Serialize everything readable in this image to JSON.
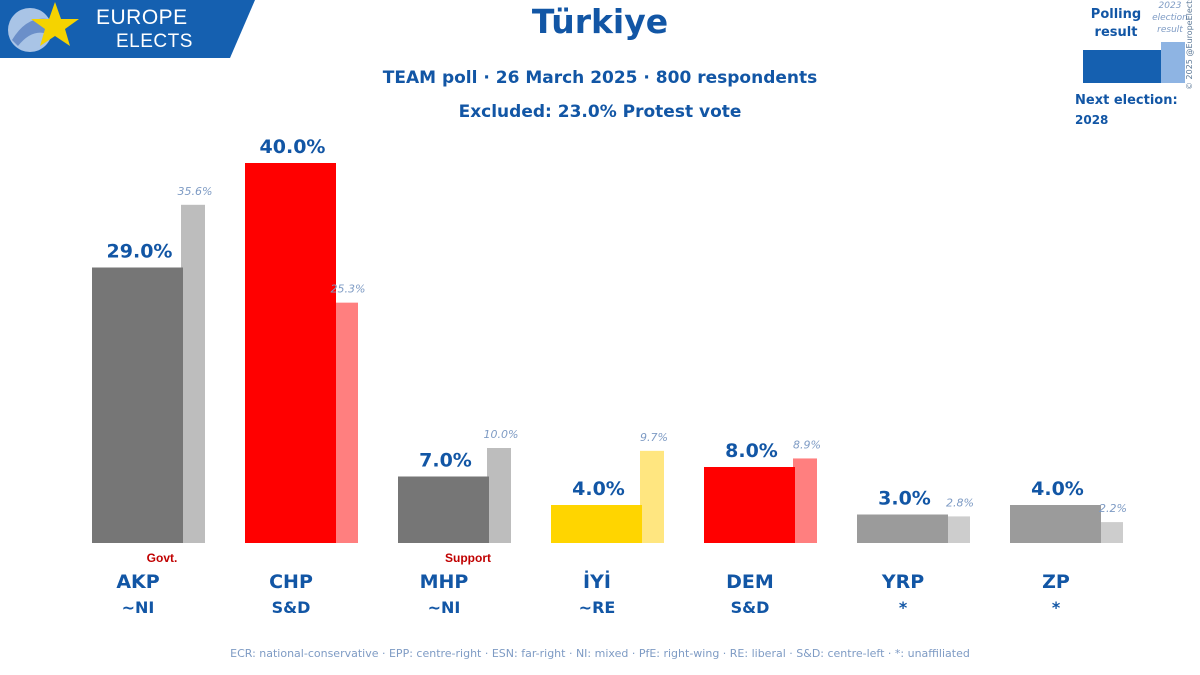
{
  "branding": {
    "logo_line1": "EUROPE",
    "logo_line2": "ELECTS",
    "brand_color": "#1560b0",
    "star_color": "#f5d300"
  },
  "header": {
    "title": "Türkiye",
    "subtitle": "TEAM poll · 26 March 2025 · 800 respondents",
    "excluded_note": "Excluded: 23.0% Protest vote"
  },
  "legend": {
    "polling_label": "Polling result",
    "previous_label": "2023 election result",
    "copyright": "© 2025 @EuropeElects",
    "next_election_label": "Next election:",
    "next_election_year": "2028"
  },
  "footer": {
    "note": "ECR: national-conservative · EPP: centre-right · ESN: far-right · NI: mixed · PfE: right-wing · RE: liberal · S&D: centre-left · *: unaffiliated"
  },
  "chart_data": {
    "type": "bar",
    "title": "Türkiye",
    "ylim": [
      0,
      42
    ],
    "categories": [
      "AKP",
      "CHP",
      "MHP",
      "İYİ",
      "DEM",
      "YRP",
      "ZP"
    ],
    "groups": [
      "~NI",
      "S&D",
      "~NI",
      "~RE",
      "S&D",
      "*",
      "*"
    ],
    "roles": [
      "Govt.",
      "",
      "Support",
      "",
      "",
      "",
      ""
    ],
    "series": [
      {
        "name": "Polling result",
        "values": [
          29.0,
          40.0,
          7.0,
          4.0,
          8.0,
          3.0,
          4.0
        ],
        "labels": [
          "29.0%",
          "40.0%",
          "7.0%",
          "4.0%",
          "8.0%",
          "3.0%",
          "4.0%"
        ]
      },
      {
        "name": "2023 election result",
        "values": [
          35.6,
          25.3,
          10.0,
          9.7,
          8.9,
          2.8,
          2.2
        ],
        "labels": [
          "35.6%",
          "25.3%",
          "10.0%",
          "9.7%",
          "8.9%",
          "2.8%",
          "2.2%"
        ]
      }
    ],
    "colors": {
      "current": [
        "#767676",
        "#ff0000",
        "#767676",
        "#ffd500",
        "#ff0000",
        "#9b9b9b",
        "#9b9b9b"
      ],
      "previous": [
        "#bdbdbd",
        "#ff7f7f",
        "#bdbdbd",
        "#ffe680",
        "#ff7f7f",
        "#cdcdcd",
        "#cdcdcd"
      ]
    }
  }
}
